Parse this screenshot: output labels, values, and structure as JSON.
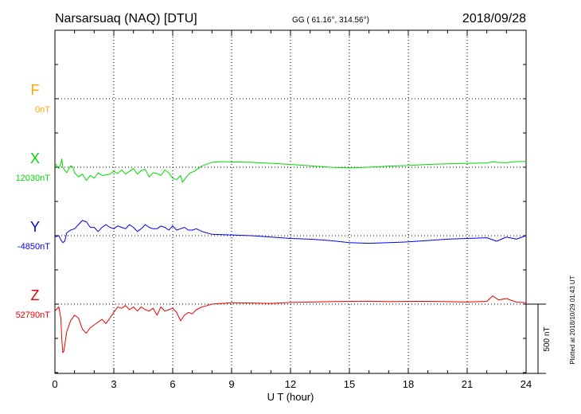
{
  "header": {
    "station": "Narsarsuaq (NAQ)  [DTU]",
    "coords": "GG ( 61.16°, 314.56°)",
    "date": "2018/09/28"
  },
  "footer": {
    "plotted": "Plotted at 2018/10/29 01:43 UT"
  },
  "scale_label": "500 nT",
  "chart_data": {
    "type": "line",
    "title": "Narsarsuaq (NAQ)  [DTU]",
    "xlabel": "U T (hour)",
    "xlim": [
      0,
      24
    ],
    "xticks": [
      "0",
      "3",
      "6",
      "9",
      "12",
      "15",
      "18",
      "21",
      "24"
    ],
    "grid": true,
    "scale_bar_nT": 500,
    "series": [
      {
        "name": "F",
        "color": "#FFA500",
        "baseline": "0nT",
        "x": [],
        "y": []
      },
      {
        "name": "X",
        "color": "#00DD00",
        "baseline": "12030nT",
        "x": [
          0,
          0.2,
          0.3,
          0.35,
          0.4,
          0.5,
          0.6,
          0.8,
          0.9,
          1.0,
          1.2,
          1.4,
          1.6,
          1.8,
          2.0,
          2.2,
          2.4,
          2.6,
          2.8,
          3.0,
          3.2,
          3.4,
          3.6,
          3.8,
          4.0,
          4.2,
          4.4,
          4.6,
          4.8,
          5.0,
          5.2,
          5.4,
          5.6,
          5.8,
          6.0,
          6.2,
          6.4,
          6.5,
          6.7,
          6.9,
          7.1,
          7.3,
          7.5,
          7.8,
          8.0,
          8.5,
          9.0,
          10,
          11,
          12,
          13,
          14,
          15,
          16,
          17,
          18,
          19,
          20,
          21,
          22,
          22.3,
          22.5,
          23,
          23.5,
          24
        ],
        "y": [
          30,
          -10,
          25,
          60,
          0,
          -20,
          -40,
          10,
          5,
          -40,
          -70,
          -50,
          -95,
          -60,
          -80,
          -40,
          -60,
          -55,
          -50,
          -30,
          -45,
          -20,
          -50,
          -30,
          -10,
          -50,
          -25,
          -15,
          -70,
          -40,
          -45,
          -60,
          -20,
          -40,
          -80,
          -90,
          -60,
          -110,
          -70,
          -40,
          -30,
          -10,
          10,
          25,
          35,
          40,
          38,
          35,
          28,
          20,
          10,
          0,
          -5,
          0,
          8,
          12,
          20,
          25,
          28,
          30,
          40,
          35,
          32,
          40,
          42
        ]
      },
      {
        "name": "Y",
        "color": "#0000EE",
        "baseline": "-4850nT",
        "x": [
          0,
          0.2,
          0.3,
          0.4,
          0.5,
          0.6,
          0.8,
          1.0,
          1.2,
          1.4,
          1.6,
          1.8,
          2.0,
          2.2,
          2.4,
          2.6,
          2.8,
          3.0,
          3.2,
          3.4,
          3.6,
          3.8,
          4.0,
          4.2,
          4.4,
          4.6,
          4.8,
          5.0,
          5.2,
          5.4,
          5.6,
          5.8,
          6.0,
          6.2,
          6.4,
          6.6,
          6.8,
          7.0,
          7.2,
          7.5,
          8.0,
          9,
          10,
          11,
          12,
          13,
          14,
          15,
          16,
          17,
          18,
          19,
          20,
          21,
          22,
          22.5,
          23,
          23.5,
          24
        ],
        "y": [
          -10,
          0,
          -30,
          -50,
          -40,
          20,
          40,
          50,
          80,
          110,
          100,
          60,
          60,
          30,
          60,
          80,
          60,
          50,
          70,
          60,
          50,
          80,
          60,
          30,
          50,
          80,
          60,
          50,
          50,
          70,
          60,
          40,
          70,
          40,
          50,
          60,
          40,
          40,
          50,
          30,
          10,
          5,
          0,
          -10,
          -20,
          -25,
          -35,
          -50,
          -55,
          -50,
          -45,
          -35,
          -25,
          -20,
          -15,
          -40,
          -10,
          -25,
          0
        ]
      },
      {
        "name": "Z",
        "color": "#EE0000",
        "baseline": "52790nT",
        "x": [
          0,
          0.2,
          0.3,
          0.35,
          0.4,
          0.45,
          0.5,
          0.6,
          0.8,
          1.0,
          1.2,
          1.4,
          1.6,
          1.8,
          2.0,
          2.2,
          2.4,
          2.6,
          2.8,
          3.0,
          3.2,
          3.4,
          3.6,
          3.8,
          4.0,
          4.2,
          4.4,
          4.6,
          4.8,
          5.0,
          5.2,
          5.4,
          5.6,
          5.8,
          6.0,
          6.2,
          6.4,
          6.6,
          6.8,
          7.0,
          7.2,
          7.5,
          8,
          9,
          10,
          11,
          12,
          13,
          14,
          15,
          16,
          17,
          18,
          19,
          20,
          21,
          22,
          22.3,
          22.6,
          23,
          23.5,
          24
        ],
        "y": [
          -50,
          -20,
          -100,
          -250,
          -350,
          -340,
          -300,
          -200,
          -120,
          -80,
          -100,
          -180,
          -210,
          -170,
          -150,
          -130,
          -110,
          -140,
          -100,
          -60,
          -20,
          -30,
          -10,
          -40,
          -20,
          -50,
          -20,
          -40,
          -50,
          -30,
          -80,
          -20,
          -50,
          -40,
          -30,
          -60,
          -120,
          -80,
          -60,
          -70,
          -40,
          -20,
          0,
          10,
          8,
          5,
          12,
          15,
          18,
          20,
          22,
          18,
          20,
          20,
          18,
          15,
          20,
          60,
          30,
          40,
          15,
          10
        ]
      }
    ]
  }
}
